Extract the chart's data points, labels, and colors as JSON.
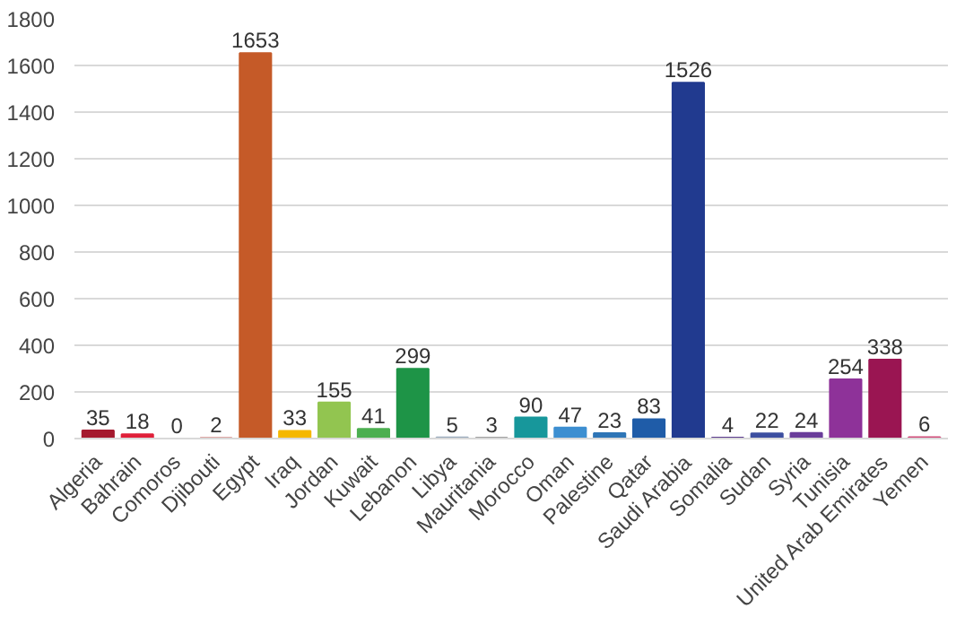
{
  "chart_data": {
    "type": "bar",
    "categories": [
      "Algeria",
      "Bahrain",
      "Comoros",
      "Djibouti",
      "Egypt",
      "Iraq",
      "Jordan",
      "Kuwait",
      "Lebanon",
      "Libya",
      "Mauritania",
      "Morocco",
      "Oman",
      "Palestine",
      "Qatar",
      "Saudi Arabia",
      "Somalia",
      "Sudan",
      "Syria",
      "Tunisia",
      "United Arab Emirates",
      "Yemen"
    ],
    "values": [
      35,
      18,
      0,
      2,
      1653,
      33,
      155,
      41,
      299,
      5,
      3,
      90,
      47,
      23,
      83,
      1526,
      4,
      22,
      24,
      254,
      338,
      6
    ],
    "colors": [
      "#a5192e",
      "#e0203a",
      "#8b2a2a",
      "#c0504d",
      "#c55a28",
      "#f5b800",
      "#92c550",
      "#4caf50",
      "#1e9447",
      "#9ab",
      "#7f7f7f",
      "#17979b",
      "#3d8fd1",
      "#2e75b6",
      "#1f5ca8",
      "#213a8f",
      "#5b3a8e",
      "#3d4fa0",
      "#6a3d9a",
      "#8e3299",
      "#9a1552",
      "#d04a78"
    ],
    "ylim": [
      0,
      1800
    ],
    "yticks": [
      0,
      200,
      400,
      600,
      800,
      1000,
      1200,
      1400,
      1600,
      1800
    ],
    "grid": "y",
    "data_labels": true
  }
}
